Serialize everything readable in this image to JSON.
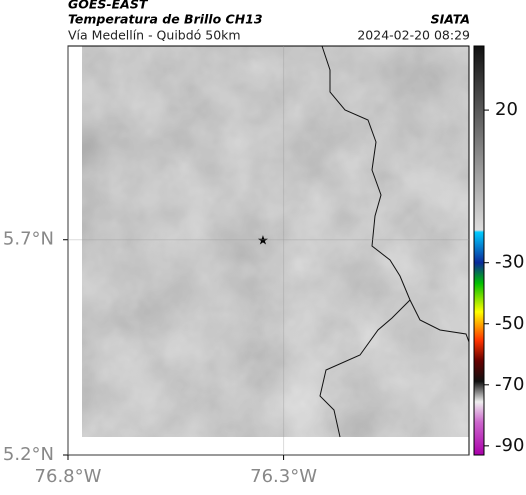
{
  "header": {
    "title": "GOES-EAST",
    "subtitle": "Temperatura de Brillo CH13",
    "source": "SIATA",
    "route": "Vía Medellín - Quibdó 50km",
    "timestamp": "2024-02-20 08:29"
  },
  "map": {
    "lat_range": [
      5.2,
      6.15
    ],
    "lon_range": [
      -76.8,
      -75.87
    ],
    "lat_ticks": [
      {
        "value": 5.2,
        "label": "5.2°N"
      },
      {
        "value": 5.7,
        "label": "5.7°N"
      }
    ],
    "lon_ticks": [
      {
        "value": -76.8,
        "label": "76.8°W"
      },
      {
        "value": -76.3,
        "label": "76.3°W"
      }
    ]
  },
  "colorbar": {
    "range": [
      -93,
      41
    ],
    "ticks": [
      20,
      -30,
      -50,
      -70,
      -90
    ]
  }
}
